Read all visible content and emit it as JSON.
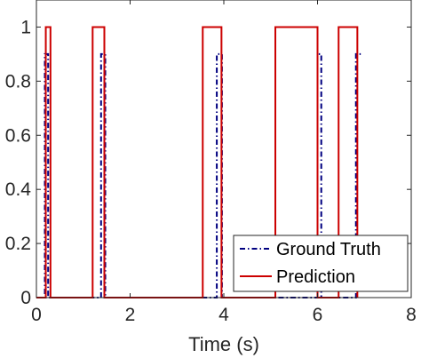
{
  "chart_data": {
    "type": "line",
    "xlabel": "Time (s)",
    "ylabel": "",
    "xlim": [
      0,
      8
    ],
    "ylim": [
      0,
      1.1
    ],
    "x_ticks": [
      0,
      2,
      4,
      6,
      8
    ],
    "x_tick_labels": [
      "0",
      "2",
      "4",
      "6",
      "8"
    ],
    "y_ticks": [
      0,
      0.2,
      0.4,
      0.6,
      0.8,
      1
    ],
    "y_tick_labels": [
      "0",
      "0.2",
      "0.4",
      "0.6",
      "0.8",
      "1"
    ],
    "grid": false,
    "legend_position": "bottom-right",
    "series": [
      {
        "name": "Ground Truth",
        "color": "#000080",
        "style": "dash-dot",
        "x": [
          0,
          0.18,
          0.18,
          0.25,
          0.25,
          1.38,
          1.38,
          1.47,
          1.47,
          3.85,
          3.85,
          3.96,
          3.96,
          6.0,
          6.0,
          6.08,
          6.08,
          6.82,
          6.82,
          6.95
        ],
        "y": [
          0,
          0,
          0.9,
          0.9,
          0,
          0,
          0.9,
          0.9,
          0,
          0,
          0.9,
          0.9,
          0,
          0,
          0.9,
          0.9,
          0,
          0,
          0.9,
          0.9
        ]
      },
      {
        "name": "Prediction",
        "color": "#cc0000",
        "style": "solid",
        "x": [
          0,
          0.2,
          0.2,
          0.3,
          0.3,
          1.2,
          1.2,
          1.45,
          1.45,
          3.55,
          3.55,
          3.95,
          3.95,
          5.1,
          5.1,
          6.0,
          6.0,
          6.45,
          6.45,
          6.85,
          6.85
        ],
        "y": [
          0,
          0,
          1,
          1,
          0,
          0,
          1,
          1,
          0,
          0,
          1,
          1,
          0,
          0,
          1,
          1,
          0,
          0,
          1,
          1,
          0
        ]
      }
    ]
  }
}
